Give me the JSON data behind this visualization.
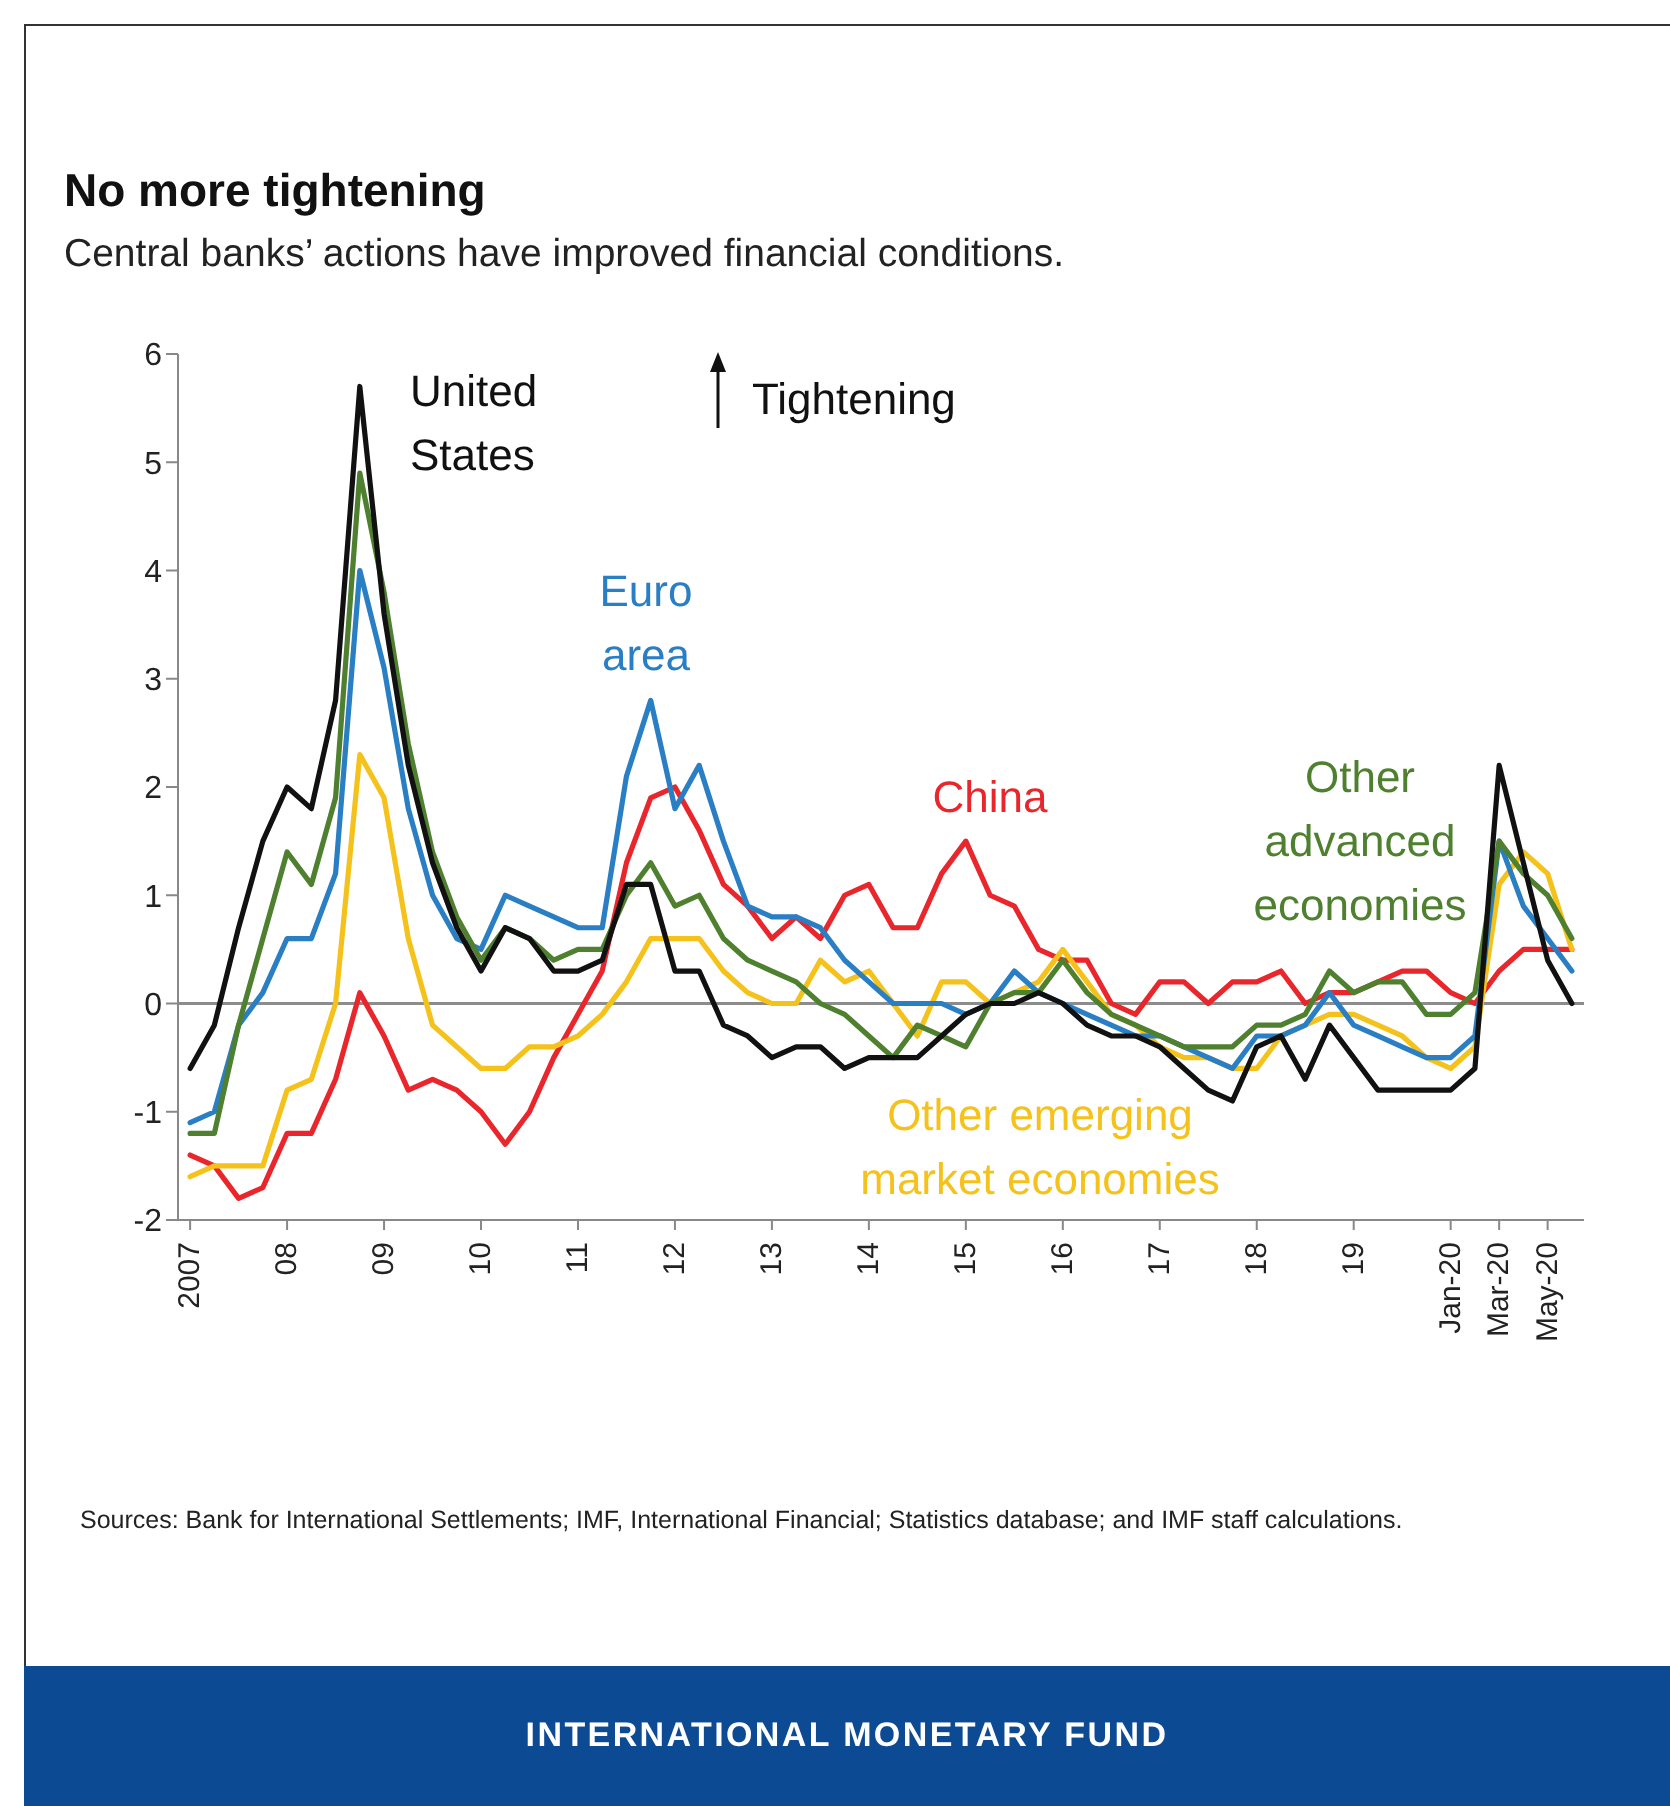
{
  "chart_data": {
    "type": "line",
    "title": "No more tightening",
    "subtitle": "Central banks’ actions have improved financial conditions.",
    "categories": [
      "2007",
      null,
      null,
      null,
      "08",
      null,
      null,
      null,
      "09",
      null,
      null,
      null,
      "10",
      null,
      null,
      null,
      "11",
      null,
      null,
      null,
      "12",
      null,
      null,
      null,
      "13",
      null,
      null,
      null,
      "14",
      null,
      null,
      null,
      "15",
      null,
      null,
      null,
      "16",
      null,
      null,
      null,
      "17",
      null,
      null,
      null,
      "18",
      null,
      null,
      null,
      "19",
      null,
      null,
      null,
      "Jan-20",
      null,
      "Mar-20",
      null,
      "May-20",
      null
    ],
    "series": [
      {
        "name": "China",
        "color": "#e8262b",
        "values": [
          -1.4,
          -1.5,
          -1.8,
          -1.7,
          -1.2,
          -1.2,
          -0.7,
          0.1,
          -0.3,
          -0.8,
          -0.7,
          -0.8,
          -1.0,
          -1.3,
          -1.0,
          -0.5,
          -0.1,
          0.3,
          1.3,
          1.9,
          2.0,
          1.6,
          1.1,
          0.9,
          0.6,
          0.8,
          0.6,
          1.0,
          1.1,
          0.7,
          0.7,
          1.2,
          1.5,
          1.0,
          0.9,
          0.5,
          0.4,
          0.4,
          0,
          -0.1,
          0.2,
          0.2,
          0,
          0.2,
          0.2,
          0.3,
          0,
          0.1,
          0.1,
          0.2,
          0.3,
          0.3,
          0.1,
          0,
          0.3,
          0.5,
          0.5,
          0.5
        ]
      },
      {
        "name": "Other emerging market economies",
        "color": "#f5c21b",
        "values": [
          -1.6,
          -1.5,
          -1.5,
          -1.5,
          -0.8,
          -0.7,
          0,
          2.3,
          1.9,
          0.6,
          -0.2,
          -0.4,
          -0.6,
          -0.6,
          -0.4,
          -0.4,
          -0.3,
          -0.1,
          0.2,
          0.6,
          0.6,
          0.6,
          0.3,
          0.1,
          0,
          0,
          0.4,
          0.2,
          0.3,
          0,
          -0.3,
          0.2,
          0.2,
          0,
          0.1,
          0.2,
          0.5,
          0.2,
          -0.1,
          -0.2,
          -0.4,
          -0.5,
          -0.5,
          -0.6,
          -0.6,
          -0.3,
          -0.2,
          -0.1,
          -0.1,
          -0.2,
          -0.3,
          -0.5,
          -0.6,
          -0.4,
          1.1,
          1.4,
          1.2,
          0.5
        ]
      },
      {
        "name": "Euro area",
        "color": "#2a7ec4",
        "values": [
          -1.1,
          -1.0,
          -0.2,
          0.1,
          0.6,
          0.6,
          1.2,
          4.0,
          3.1,
          1.8,
          1.0,
          0.6,
          0.5,
          1.0,
          0.9,
          0.8,
          0.7,
          0.7,
          2.1,
          2.8,
          1.8,
          2.2,
          1.5,
          0.9,
          0.8,
          0.8,
          0.7,
          0.4,
          0.2,
          0,
          0,
          0,
          -0.1,
          0,
          0.3,
          0.1,
          0,
          -0.1,
          -0.2,
          -0.3,
          -0.3,
          -0.4,
          -0.5,
          -0.6,
          -0.3,
          -0.3,
          -0.2,
          0.1,
          -0.2,
          -0.3,
          -0.4,
          -0.5,
          -0.5,
          -0.3,
          1.5,
          0.9,
          0.6,
          0.3
        ]
      },
      {
        "name": "Other advanced economies",
        "color": "#4e8030",
        "values": [
          -1.2,
          -1.2,
          -0.2,
          0.6,
          1.4,
          1.1,
          1.9,
          4.9,
          3.8,
          2.4,
          1.4,
          0.8,
          0.4,
          0.7,
          0.6,
          0.4,
          0.5,
          0.5,
          1.0,
          1.3,
          0.9,
          1.0,
          0.6,
          0.4,
          0.3,
          0.2,
          0,
          -0.1,
          -0.3,
          -0.5,
          -0.2,
          -0.3,
          -0.4,
          0,
          0.1,
          0.1,
          0.4,
          0.1,
          -0.1,
          -0.2,
          -0.3,
          -0.4,
          -0.4,
          -0.4,
          -0.2,
          -0.2,
          -0.1,
          0.3,
          0.1,
          0.2,
          0.2,
          -0.1,
          -0.1,
          0.1,
          1.5,
          1.2,
          1.0,
          0.6
        ]
      },
      {
        "name": "United States",
        "color": "#111111",
        "values": [
          -0.6,
          -0.2,
          0.7,
          1.5,
          2.0,
          1.8,
          2.8,
          5.7,
          3.6,
          2.2,
          1.3,
          0.7,
          0.3,
          0.7,
          0.6,
          0.3,
          0.3,
          0.4,
          1.1,
          1.1,
          0.3,
          0.3,
          -0.2,
          -0.3,
          -0.5,
          -0.4,
          -0.4,
          -0.6,
          -0.5,
          -0.5,
          -0.5,
          -0.3,
          -0.1,
          0,
          0,
          0.1,
          0,
          -0.2,
          -0.3,
          -0.3,
          -0.4,
          -0.6,
          -0.8,
          -0.9,
          -0.4,
          -0.3,
          -0.7,
          -0.2,
          -0.5,
          -0.8,
          -0.8,
          -0.8,
          -0.8,
          -0.6,
          2.2,
          1.3,
          0.4,
          0
        ]
      }
    ],
    "ylim": [
      -2,
      6
    ],
    "yticks": [
      -2,
      -1,
      0,
      1,
      2,
      3,
      4,
      5,
      6
    ],
    "grid": false,
    "legend": false,
    "marker": "none",
    "line_style": "solid",
    "ref_lines": [
      {
        "axis": "y",
        "value": 0,
        "color": "#8c8c8c"
      }
    ],
    "annotations": [
      "Tightening",
      "Sources: Bank for International Settlements; IMF, International Financial; Statistics database; and IMF staff calculations.",
      "INTERNATIONAL MONETARY FUND"
    ]
  }
}
